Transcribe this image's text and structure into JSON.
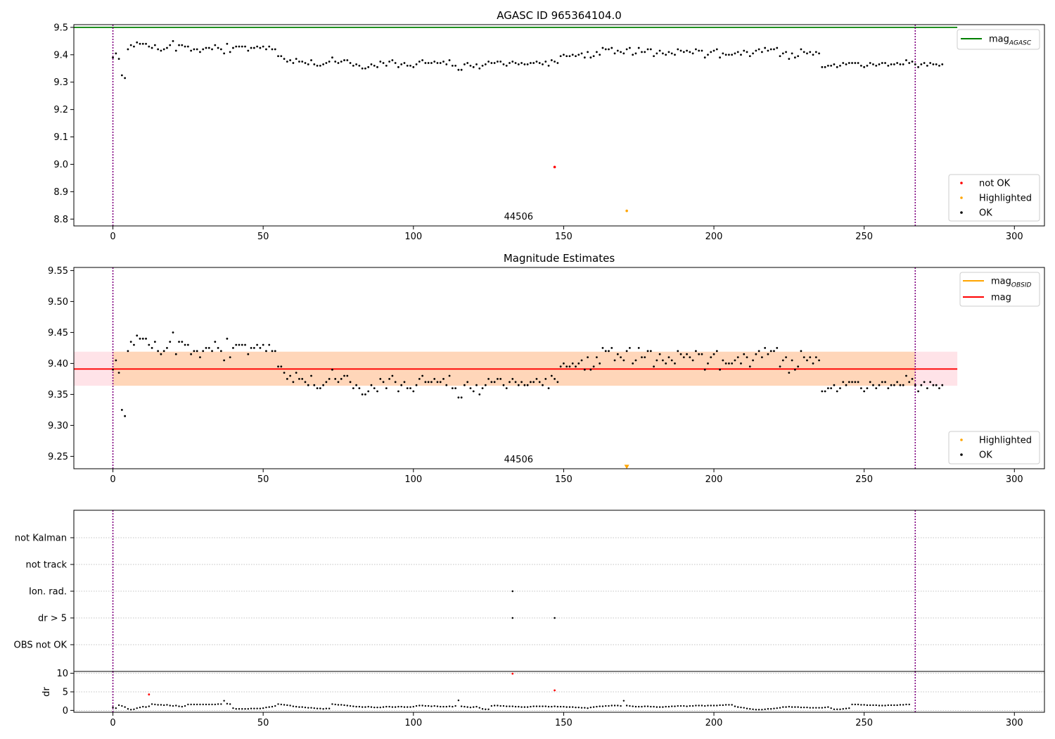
{
  "figure": {
    "title": "AGASC ID 965364104.0"
  },
  "chart_data": [
    {
      "type": "scatter",
      "panel": "agasc-magnitude",
      "title": "AGASC ID 965364104.0",
      "xlim": [
        -13,
        310
      ],
      "ylim": [
        8.775,
        9.51
      ],
      "xticks": [
        0,
        50,
        100,
        150,
        200,
        250,
        300
      ],
      "yticks": [
        8.8,
        8.9,
        9.0,
        9.1,
        9.2,
        9.3,
        9.4,
        9.5
      ],
      "obsid_label": "44506",
      "obsid_boundaries": [
        0,
        267
      ],
      "reference_line": {
        "name": "mag",
        "subscript": "AGASC",
        "value": 9.5,
        "x": [
          -13,
          281
        ],
        "color": "#008000"
      },
      "legend_lines": [
        {
          "name": "mag",
          "subscript": "AGASC",
          "color": "#008000"
        }
      ],
      "legend_points": [
        {
          "name": "not OK",
          "color": "#ff0000"
        },
        {
          "name": "Highlighted",
          "color": "#ffa500"
        },
        {
          "name": "OK",
          "color": "#000000"
        }
      ],
      "series": [
        {
          "name": "OK",
          "color": "#000000",
          "y_step": 1,
          "x_start": 0,
          "y": [
            9.39,
            9.405,
            9.385,
            9.325,
            9.315,
            9.42,
            9.435,
            9.43,
            9.445,
            9.44,
            9.44,
            9.44,
            9.43,
            9.425,
            9.435,
            9.42,
            9.415,
            9.42,
            9.425,
            9.435,
            9.45,
            9.415,
            9.435,
            9.435,
            9.43,
            9.43,
            9.415,
            9.42,
            9.42,
            9.41,
            9.42,
            9.425,
            9.425,
            9.42,
            9.435,
            9.425,
            9.42,
            9.405,
            9.44,
            9.41,
            9.425,
            9.43,
            9.43,
            9.43,
            9.43,
            9.415,
            9.425,
            9.425,
            9.43,
            9.425,
            9.43,
            9.42,
            9.43,
            9.42,
            9.42,
            9.395,
            9.395,
            9.385,
            9.375,
            9.38,
            9.37,
            9.385,
            9.375,
            9.375,
            9.37,
            9.365,
            9.38,
            9.365,
            9.36,
            9.36,
            9.365,
            9.37,
            9.375,
            9.39,
            9.375,
            9.37,
            9.375,
            9.38,
            9.38,
            9.37,
            9.36,
            9.365,
            9.36,
            9.35,
            9.35,
            9.355,
            9.365,
            9.36,
            9.355,
            9.375,
            9.37,
            9.36,
            9.375,
            9.38,
            9.37,
            9.355,
            9.365,
            9.37,
            9.36,
            9.36,
            9.355,
            9.365,
            9.375,
            9.38,
            9.37,
            9.37,
            9.37,
            9.375,
            9.37,
            9.37,
            9.375,
            9.365,
            9.38,
            9.36,
            9.36,
            9.345,
            9.345,
            9.365,
            9.37,
            9.36,
            9.355,
            9.365,
            9.35,
            9.36,
            9.365,
            9.375,
            9.37,
            9.37,
            9.375,
            9.375,
            9.365,
            9.36,
            9.37,
            9.375,
            9.37,
            9.365,
            9.37,
            9.365,
            9.365,
            9.37,
            9.37,
            9.375,
            9.37,
            9.365,
            9.375,
            9.36,
            9.38,
            9.375,
            9.37,
            9.395,
            9.4,
            9.395,
            9.395,
            9.4,
            9.395,
            9.4,
            9.405,
            9.39,
            9.41,
            9.39,
            9.395,
            9.41,
            9.4,
            9.425,
            9.42,
            9.42,
            9.425,
            9.405,
            9.415,
            9.41,
            9.405,
            9.42,
            9.425,
            9.4,
            9.405,
            9.425,
            9.41,
            9.41,
            9.42,
            9.42,
            9.395,
            9.405,
            9.415,
            9.405,
            9.4,
            9.41,
            9.405,
            9.4,
            9.42,
            9.415,
            9.41,
            9.415,
            9.41,
            9.405,
            9.42,
            9.415,
            9.415,
            9.39,
            9.4,
            9.41,
            9.415,
            9.42,
            9.39,
            9.405,
            9.4,
            9.4,
            9.4,
            9.405,
            9.41,
            9.4,
            9.415,
            9.41,
            9.395,
            9.405,
            9.415,
            9.42,
            9.41,
            9.425,
            9.415,
            9.42,
            9.42,
            9.425,
            9.395,
            9.405,
            9.41,
            9.385,
            9.405,
            9.39,
            9.395,
            9.42,
            9.41,
            9.405,
            9.41,
            9.4,
            9.41,
            9.405,
            9.355,
            9.355,
            9.36,
            9.36,
            9.365,
            9.355,
            9.36,
            9.37,
            9.365,
            9.37,
            9.37,
            9.37,
            9.37,
            9.36,
            9.355,
            9.36,
            9.37,
            9.365,
            9.36,
            9.365,
            9.37,
            9.37,
            9.36,
            9.365,
            9.365,
            9.37,
            9.365,
            9.365,
            9.38,
            9.37,
            9.375,
            9.365,
            9.355,
            9.365,
            9.37,
            9.36,
            9.37,
            9.365,
            9.365,
            9.36,
            9.365
          ]
        },
        {
          "name": "not OK",
          "color": "#ff0000",
          "points": [
            [
              147,
              8.99
            ]
          ]
        },
        {
          "name": "Highlighted",
          "color": "#ffa500",
          "points": [
            [
              171,
              8.83
            ]
          ]
        }
      ]
    },
    {
      "type": "scatter",
      "panel": "magnitude-estimates",
      "title": "Magnitude Estimates",
      "xlim": [
        -13,
        310
      ],
      "ylim": [
        9.23,
        9.555
      ],
      "xticks": [
        0,
        50,
        100,
        150,
        200,
        250,
        300
      ],
      "yticks": [
        9.25,
        9.3,
        9.35,
        9.4,
        9.45,
        9.5,
        9.55
      ],
      "obsid_label": "44506",
      "obsid_boundaries": [
        0,
        267
      ],
      "mag_line": {
        "name": "mag",
        "value": 9.391,
        "x": [
          -13,
          281
        ],
        "color": "#ff0000"
      },
      "mag_band": {
        "low": 9.364,
        "high": 9.419,
        "x": [
          -13,
          281
        ],
        "color": "#ffc0cb"
      },
      "obsid_band": {
        "low": 9.364,
        "high": 9.419,
        "x": [
          0,
          267
        ],
        "color": "#ffa500"
      },
      "legend_lines": [
        {
          "name": "mag",
          "subscript": "OBSID",
          "color": "#ffa500"
        },
        {
          "name": "mag",
          "subscript": "",
          "color": "#ff0000"
        }
      ],
      "legend_points": [
        {
          "name": "Highlighted",
          "color": "#ffa500"
        },
        {
          "name": "OK",
          "color": "#000000"
        }
      ],
      "series": [
        {
          "name": "OK",
          "color": "#000000",
          "x_start": 0,
          "same_as_panel": "agasc-magnitude"
        },
        {
          "name": "Highlighted",
          "color": "#ffa500",
          "points": [
            [
              171,
              9.233
            ]
          ],
          "marker": "triangle-down"
        }
      ]
    },
    {
      "type": "scatter",
      "panel": "flags",
      "xlim": [
        -13,
        310
      ],
      "categories": [
        "not Kalman",
        "not track",
        "Ion. rad.",
        "dr > 5",
        "OBS not OK"
      ],
      "obsid_boundaries": [
        0,
        267
      ],
      "series": [
        {
          "name": "Ion. rad.",
          "color": "#000000",
          "points": [
            [
              133,
              "Ion. rad."
            ]
          ]
        },
        {
          "name": "dr > 5",
          "color": "#000000",
          "points": [
            [
              133,
              "dr > 5"
            ],
            [
              147,
              "dr > 5"
            ]
          ]
        }
      ]
    },
    {
      "type": "scatter",
      "panel": "dr",
      "ylabel": "dr",
      "xlim": [
        -13,
        310
      ],
      "ylim": [
        -0.5,
        10.5
      ],
      "xticks": [
        0,
        50,
        100,
        150,
        200,
        250,
        300
      ],
      "yticks": [
        0,
        5,
        10
      ],
      "obsid_boundaries": [
        0,
        267
      ],
      "series": [
        {
          "name": "OK",
          "color": "#000000",
          "x_start": 0,
          "y": [
            0.8,
            0.6,
            1.4,
            1.2,
            0.9,
            0.4,
            0.2,
            0.3,
            0.6,
            0.8,
            1.0,
            0.9,
            1.1,
            1.7,
            1.6,
            1.5,
            1.5,
            1.4,
            1.5,
            1.3,
            1.2,
            1.3,
            1.1,
            1.0,
            1.2,
            1.6,
            1.6,
            1.6,
            1.6,
            1.6,
            1.6,
            1.6,
            1.6,
            1.6,
            1.6,
            1.7,
            1.7,
            2.6,
            1.8,
            1.7,
            0.6,
            0.4,
            0.4,
            0.4,
            0.4,
            0.4,
            0.5,
            0.5,
            0.5,
            0.5,
            0.6,
            0.8,
            0.9,
            1.0,
            1.2,
            1.7,
            1.6,
            1.5,
            1.4,
            1.3,
            1.1,
            1.0,
            0.9,
            0.9,
            0.8,
            0.7,
            0.7,
            0.6,
            0.5,
            0.5,
            0.4,
            0.5,
            0.5,
            1.7,
            1.6,
            1.5,
            1.5,
            1.4,
            1.3,
            1.2,
            1.1,
            1.0,
            1.0,
            0.9,
            0.9,
            1.0,
            0.9,
            0.8,
            0.8,
            0.8,
            0.9,
            1.0,
            1.0,
            0.9,
            0.9,
            1.0,
            1.0,
            0.9,
            0.9,
            0.9,
            1.0,
            1.2,
            1.3,
            1.3,
            1.2,
            1.2,
            1.1,
            1.2,
            1.1,
            1.0,
            1.0,
            1.0,
            1.1,
            1.0,
            1.2,
            2.7,
            1.1,
            1.0,
            0.9,
            0.8,
            0.9,
            1.0,
            0.7,
            0.4,
            0.3,
            0.3,
            1.2,
            1.3,
            1.3,
            1.2,
            1.2,
            1.1,
            1.1,
            1.1,
            1.0,
            1.0,
            0.9,
            0.9,
            0.9,
            1.0,
            1.1,
            1.1,
            1.1,
            1.1,
            1.1,
            1.0,
            1.0,
            1.1,
            1.0,
            1.0,
            1.0,
            0.9,
            0.9,
            0.9,
            0.8,
            0.8,
            0.7,
            0.7,
            0.6,
            0.8,
            0.9,
            1.0,
            1.1,
            1.1,
            1.2,
            1.2,
            1.3,
            1.3,
            1.3,
            1.2,
            2.6,
            1.3,
            1.2,
            1.1,
            1.0,
            1.0,
            1.0,
            1.1,
            1.1,
            1.0,
            1.0,
            0.9,
            0.9,
            0.9,
            1.0,
            1.0,
            1.1,
            1.1,
            1.2,
            1.2,
            1.2,
            1.1,
            1.2,
            1.2,
            1.3,
            1.3,
            1.3,
            1.2,
            1.3,
            1.3,
            1.3,
            1.3,
            1.4,
            1.4,
            1.5,
            1.5,
            1.5,
            1.1,
            0.9,
            0.8,
            0.7,
            0.5,
            0.4,
            0.3,
            0.2,
            0.2,
            0.2,
            0.3,
            0.4,
            0.4,
            0.5,
            0.6,
            0.7,
            0.9,
            0.9,
            1.0,
            0.9,
            0.9,
            0.9,
            0.8,
            0.8,
            0.8,
            0.7,
            0.7,
            0.7,
            0.7,
            0.7,
            0.8,
            0.9,
            0.6,
            0.3,
            0.3,
            0.3,
            0.4,
            0.5,
            0.6,
            1.6,
            1.6,
            1.6,
            1.5,
            1.5,
            1.4,
            1.4,
            1.4,
            1.4,
            1.3,
            1.3,
            1.3,
            1.4,
            1.4,
            1.4,
            1.4,
            1.5,
            1.5,
            1.6,
            1.6
          ]
        },
        {
          "name": "not OK",
          "color": "#ff0000",
          "points": [
            [
              12,
              4.3
            ],
            [
              133,
              9.9
            ],
            [
              147,
              5.4
            ]
          ]
        }
      ]
    }
  ]
}
